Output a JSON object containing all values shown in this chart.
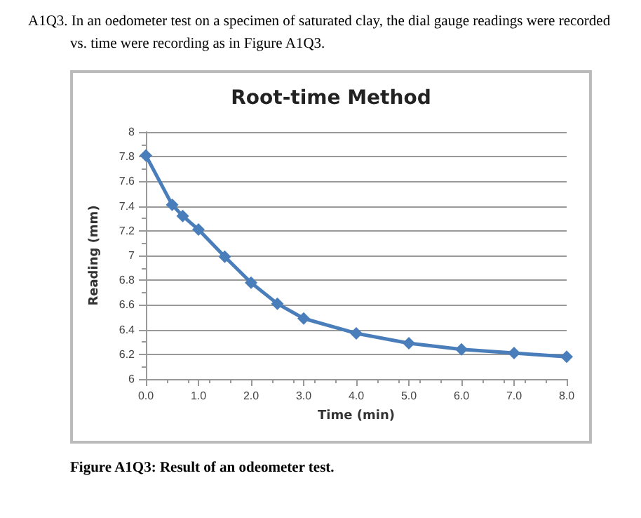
{
  "chart_data": {
    "type": "line",
    "title": "Root-time Method",
    "xlabel": "Time (min)",
    "ylabel": "Reading (mm)",
    "x": [
      0,
      0.5,
      0.7,
      1.0,
      1.5,
      2.0,
      2.5,
      3.0,
      4.0,
      5.0,
      6.0,
      7.0,
      8.0
    ],
    "series": [
      {
        "color": "#4a7ebb",
        "values": [
          7.81,
          7.41,
          7.32,
          7.21,
          6.99,
          6.78,
          6.61,
          6.49,
          6.37,
          6.29,
          6.24,
          6.21,
          6.18
        ]
      }
    ],
    "xlim": [
      0,
      8
    ],
    "xticks": [
      {
        "value": 0,
        "label": "0.0"
      },
      {
        "value": 1,
        "label": "1.0"
      },
      {
        "value": 2,
        "label": "2.0"
      },
      {
        "value": 3,
        "label": "3.0"
      },
      {
        "value": 4,
        "label": "4.0"
      },
      {
        "value": 5,
        "label": "5.0"
      },
      {
        "value": 6,
        "label": "6.0"
      },
      {
        "value": 7,
        "label": "7.0"
      },
      {
        "value": 8,
        "label": "8.0"
      }
    ],
    "ylim": [
      6,
      8
    ],
    "yticks": [
      6,
      6.2,
      6.4,
      6.6,
      6.8,
      7,
      7.2,
      7.4,
      7.6,
      7.8,
      8
    ],
    "grid": "y",
    "marker": "diamond",
    "line_style": "solid",
    "annotations": [
      "A1Q3.  In an oedometer test on a specimen of saturated clay, the dial gauge readings were recorded vs. time were recording as in Figure A1Q3.",
      "Figure A1Q3: Result of an odeometer test."
    ]
  }
}
